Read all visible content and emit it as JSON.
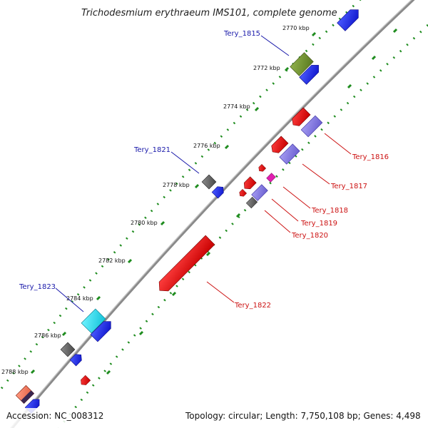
{
  "title": "Trichodesmium erythraeum IMS101, complete genome",
  "footer": {
    "accession": "Accession: NC_008312",
    "summary": "Topology: circular; Length: 7,750,108 bp; Genes: 4,498"
  },
  "kbp_ticks": [
    "2770 kbp",
    "2772 kbp",
    "2774 kbp",
    "2776 kbp",
    "2778 kbp",
    "2780 kbp",
    "2782 kbp",
    "2784 kbp",
    "2786 kbp",
    "2788 kbp"
  ],
  "gene_labels": {
    "forward": [
      "Tery_1815",
      "Tery_1821",
      "Tery_1823"
    ],
    "reverse": [
      "Tery_1816",
      "Tery_1817",
      "Tery_1818",
      "Tery_1819",
      "Tery_1820",
      "Tery_1822"
    ]
  },
  "colors": {
    "forward_label": "#1a1aaa",
    "reverse_label": "#cc1111",
    "backbone": "#8a8a8a",
    "tick_dots": "#1e8c1e"
  }
}
